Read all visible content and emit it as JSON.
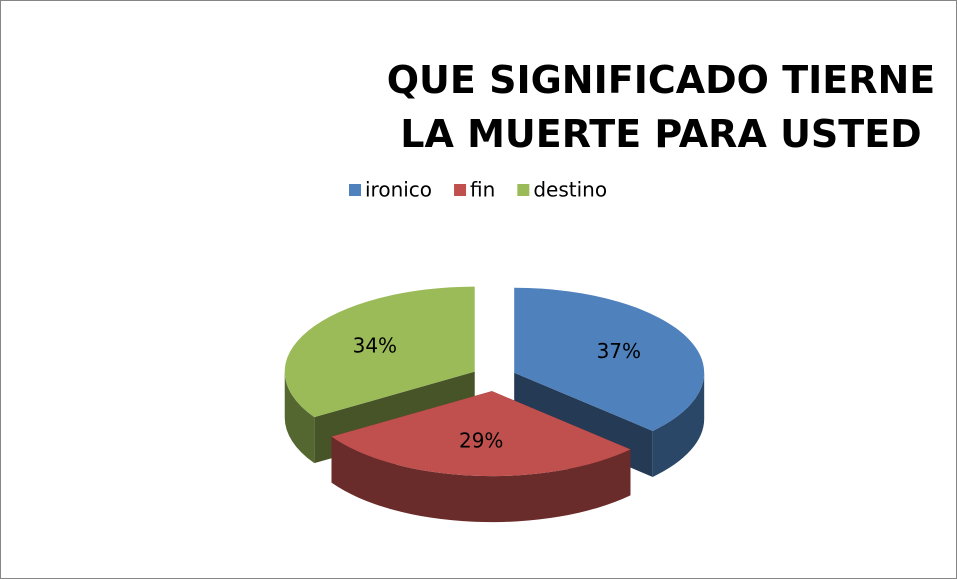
{
  "chart_data": {
    "type": "pie3d",
    "title": "QUE SIGNIFICADO TIERNE LA MUERTE PARA USTED",
    "categories": [
      "ironico",
      "fin",
      "destino"
    ],
    "values": [
      37,
      29,
      34
    ],
    "value_labels": [
      "37%",
      "29%",
      "34%"
    ],
    "colors": [
      "#4f81bd",
      "#c0504d",
      "#9bbb59"
    ],
    "legend": "top"
  }
}
